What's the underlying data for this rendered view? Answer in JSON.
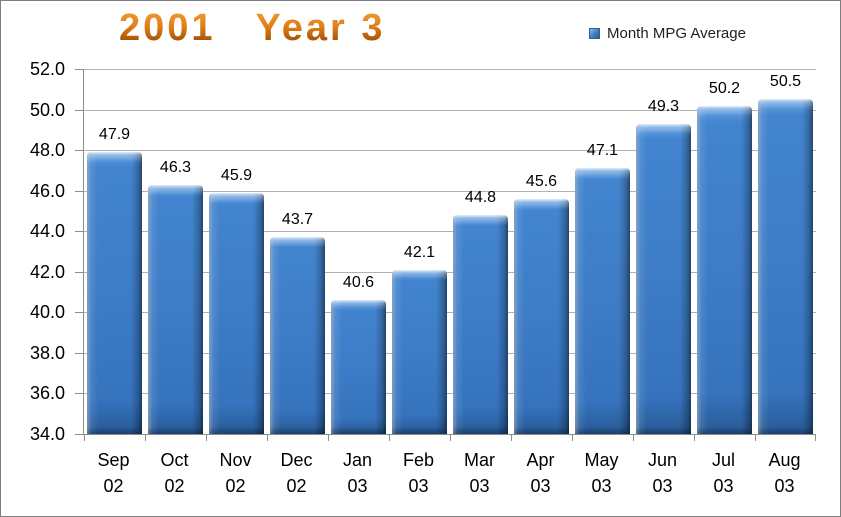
{
  "title": {
    "text": "2001   Year 3"
  },
  "legend": {
    "label": "Month MPG Average",
    "swatch_color": "#3e7dc7",
    "position": "top-right"
  },
  "chart_data": {
    "type": "bar",
    "title": "2001   Year 3",
    "series_name": "Month MPG Average",
    "categories": [
      "Sep 02",
      "Oct 02",
      "Nov 02",
      "Dec 02",
      "Jan 03",
      "Feb 03",
      "Mar 03",
      "Apr 03",
      "May 03",
      "Jun 03",
      "Jul 03",
      "Aug 03"
    ],
    "values": [
      47.9,
      46.3,
      45.9,
      43.7,
      40.6,
      42.1,
      44.8,
      45.6,
      47.1,
      49.3,
      50.2,
      50.5
    ],
    "data_labels_shown": true,
    "ylim": [
      34.0,
      52.0
    ],
    "ytick_step": 2.0,
    "ytick_labels": [
      "34.0",
      "36.0",
      "38.0",
      "40.0",
      "42.0",
      "44.0",
      "46.0",
      "48.0",
      "50.0",
      "52.0"
    ],
    "grid": true,
    "xlabel": "",
    "ylabel": "",
    "legend_position": "top-right"
  },
  "colors": {
    "background": "#ffffff",
    "border": "#7f7f7f",
    "title_gradient_top": "#f2a33c",
    "title_gradient_bottom": "#a85407",
    "bar_fill": "#3e7dc7",
    "bar_highlight": "#8fc0f0",
    "bar_shadow": "#275a96",
    "gridline": "#b2b2b2",
    "axis": "#8c8c8c",
    "legend_text": "#1f1f1f",
    "label_text": "#000000"
  }
}
